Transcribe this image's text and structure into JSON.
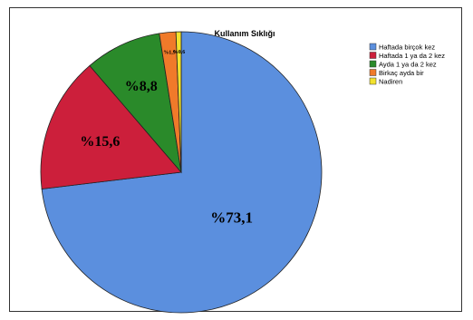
{
  "chart_data": {
    "type": "pie",
    "title": "Kullanım Sıklığı",
    "legend_position": "right",
    "slices": [
      {
        "name": "Haftada birçok kez",
        "value": 73.1,
        "label": "%73,1",
        "color": "#5b8fde"
      },
      {
        "name": "Haftada 1 ya da 2 kez",
        "value": 15.6,
        "label": "%15,6",
        "color": "#cc1f3b"
      },
      {
        "name": "Ayda 1 ya da 2 kez",
        "value": 8.8,
        "label": "%8,8",
        "color": "#2a8a2a"
      },
      {
        "name": "Birkaç ayda bir",
        "value": 1.9,
        "label": "%1,9",
        "color": "#f07a2a"
      },
      {
        "name": "Nadiren",
        "value": 0.6,
        "label": "%0,6",
        "color": "#f2e22e"
      }
    ]
  }
}
